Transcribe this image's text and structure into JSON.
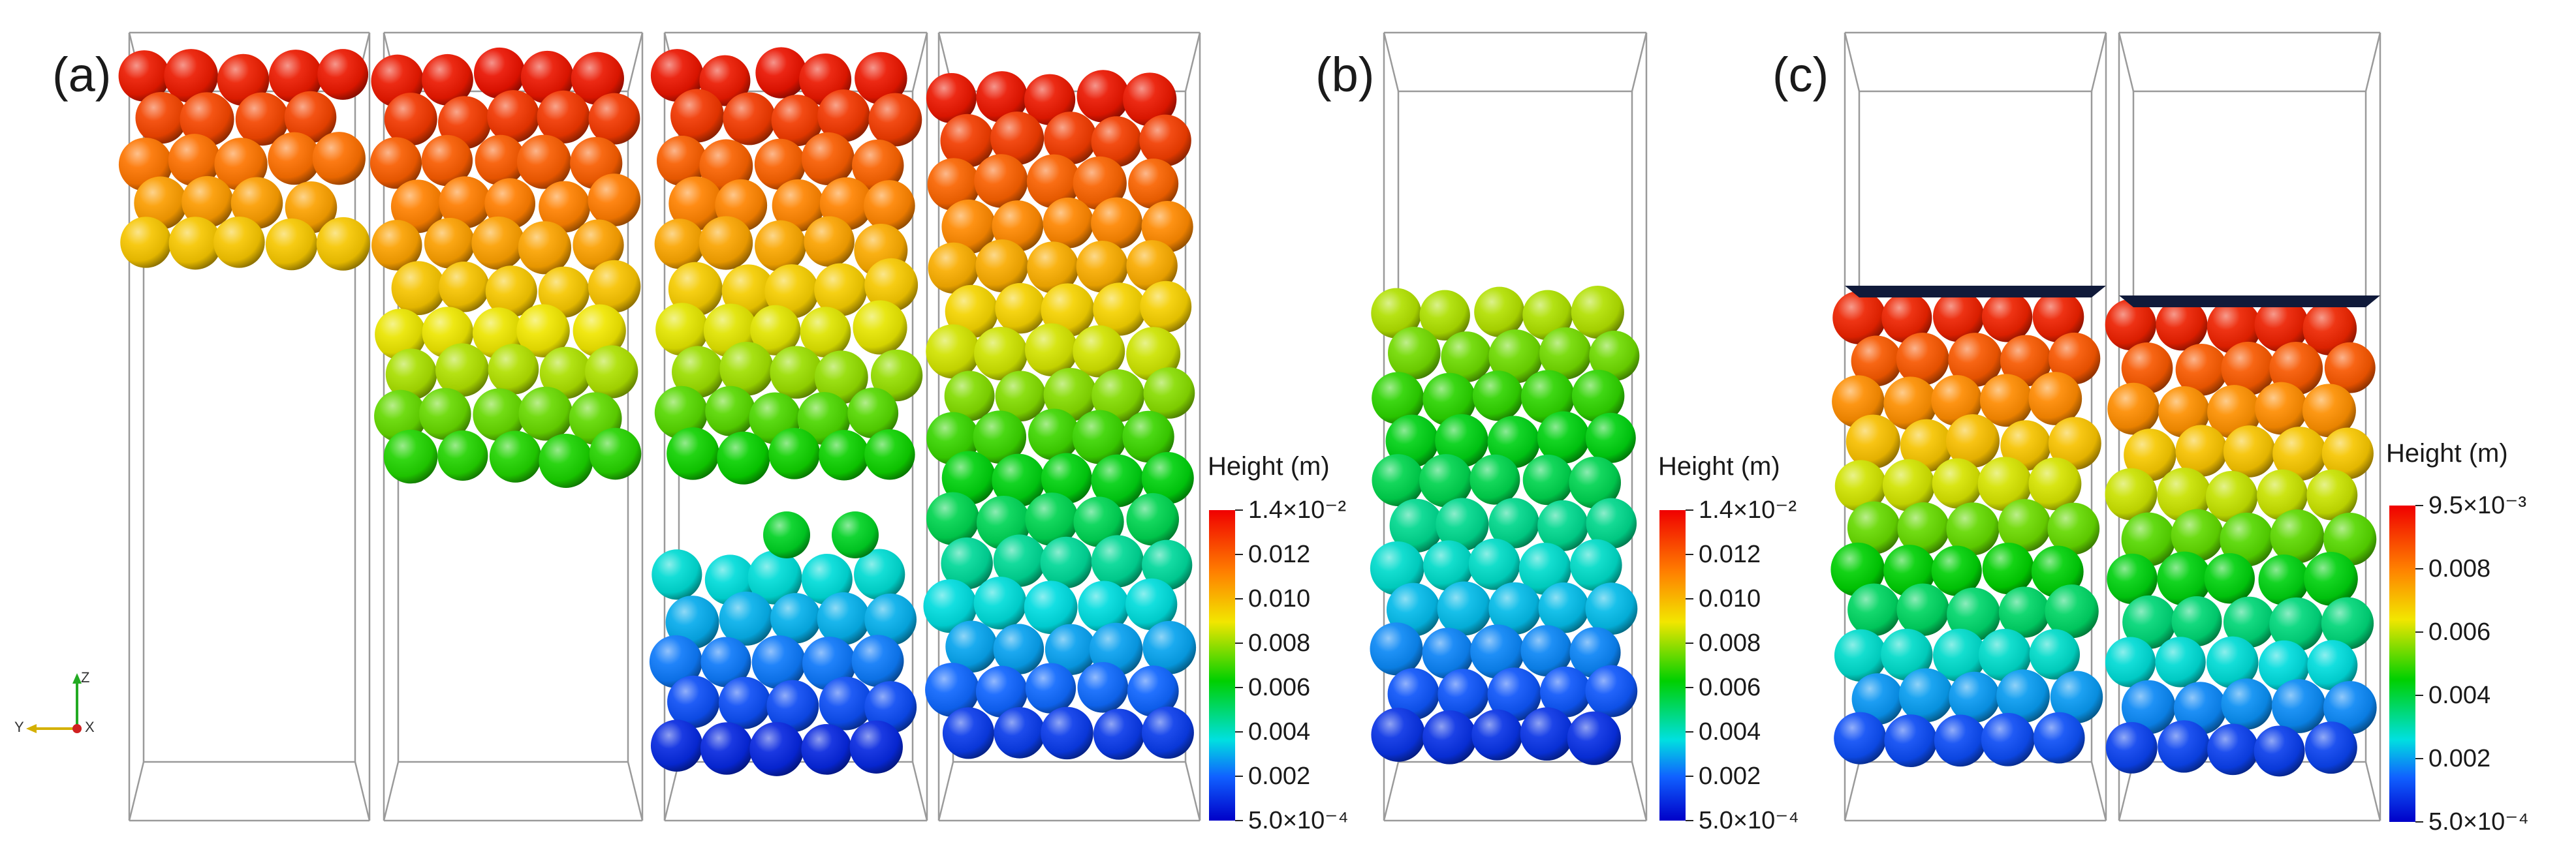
{
  "figure": {
    "panels": [
      {
        "label": "(a)",
        "frames": 4,
        "colorbar": {
          "title": "Height (m)",
          "ticks": [
            "1.4×10⁻²",
            "0.012",
            "0.010",
            "0.008",
            "0.006",
            "0.004",
            "0.002",
            "5.0×10⁻⁴"
          ]
        }
      },
      {
        "label": "(b)",
        "frames": 1,
        "colorbar": {
          "title": "Height (m)",
          "ticks": [
            "1.4×10⁻²",
            "0.012",
            "0.010",
            "0.008",
            "0.006",
            "0.004",
            "0.002",
            "5.0×10⁻⁴"
          ]
        }
      },
      {
        "label": "(c)",
        "frames": 2,
        "colorbar": {
          "title": "Height (m)",
          "ticks": [
            "9.5×10⁻³",
            "0.008",
            "0.006",
            "0.004",
            "0.002",
            "5.0×10⁻⁴"
          ]
        }
      }
    ],
    "axes_triad": {
      "z": "Z",
      "y": "Y",
      "x": "X"
    },
    "colors": {
      "high": "#e00000",
      "low": "#0000c0",
      "frame": "#9a9a9a",
      "platen": "#101a3a"
    }
  }
}
